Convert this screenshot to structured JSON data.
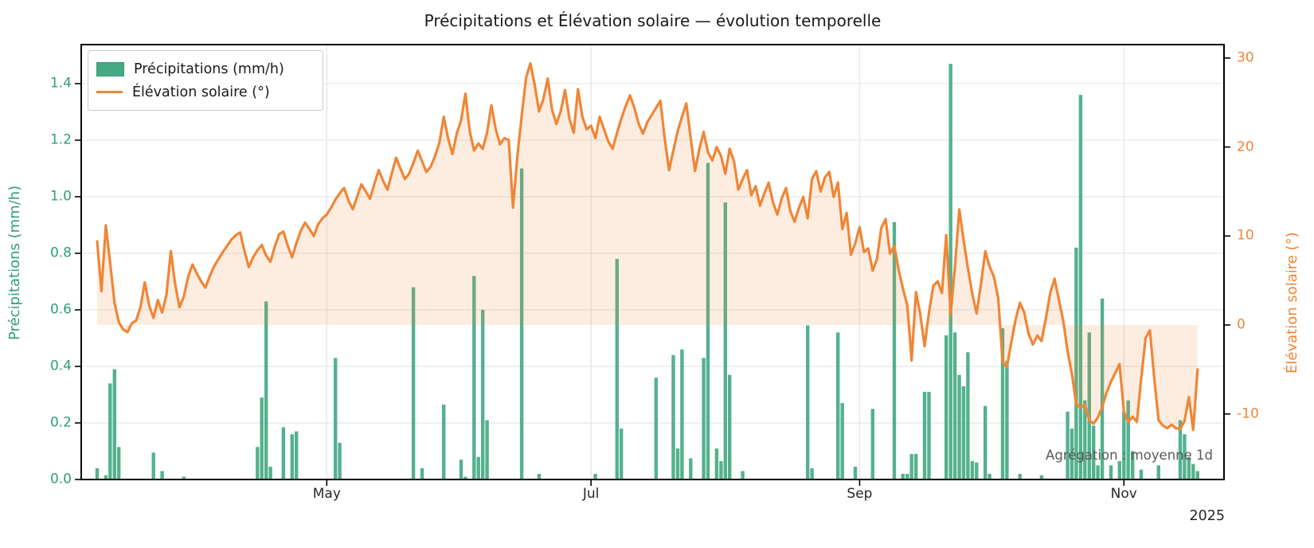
{
  "title": "Précipitations et Élévation solaire — évolution temporelle",
  "legend": {
    "items": [
      {
        "label": "Précipitations (mm/h)",
        "swatch": "bar-patch",
        "color": "#45aa84"
      },
      {
        "label": "Élévation solaire (°)",
        "swatch": "line",
        "color": "#ef8636"
      }
    ]
  },
  "annotation": "Agrégation : moyenne 1d",
  "x_axis": {
    "year_label": "2025",
    "ticks": [
      {
        "label": "May",
        "date": "2025-05-01"
      },
      {
        "label": "Jul",
        "date": "2025-07-01"
      },
      {
        "label": "Sep",
        "date": "2025-09-01"
      },
      {
        "label": "Nov",
        "date": "2025-11-01"
      }
    ]
  },
  "y_axis_left": {
    "label": "Précipitations (mm/h)",
    "color": "#2f9e77",
    "ticks": [
      "0.0",
      "0.2",
      "0.4",
      "0.6",
      "0.8",
      "1.0",
      "1.2",
      "1.4"
    ],
    "range": [
      0,
      1.54
    ]
  },
  "y_axis_right": {
    "label": "Élévation solaire (°)",
    "color": "#ef8636",
    "ticks": [
      "30",
      "20",
      "10",
      "0",
      "-10"
    ],
    "range": [
      -17.4,
      31.5
    ]
  },
  "chart_data": {
    "type": "combo",
    "grid": true,
    "legend_position": "upper-left",
    "start_date": "2025-03-09",
    "end_date": "2025-11-18",
    "aggregation": "moyenne 1d",
    "series": [
      {
        "name": "Précipitations (mm/h)",
        "type": "bar",
        "axis": "left",
        "color": "#45aa84",
        "unit": "mm/h",
        "points": {
          "2025-03-09": 0.04,
          "2025-03-11": 0.015,
          "2025-03-12": 0.34,
          "2025-03-13": 0.39,
          "2025-03-14": 0.115,
          "2025-03-22": 0.095,
          "2025-03-24": 0.03,
          "2025-03-29": 0.01,
          "2025-04-15": 0.115,
          "2025-04-16": 0.29,
          "2025-04-17": 0.63,
          "2025-04-18": 0.045,
          "2025-04-21": 0.185,
          "2025-04-23": 0.16,
          "2025-04-24": 0.17,
          "2025-05-03": 0.43,
          "2025-05-04": 0.13,
          "2025-05-21": 0.68,
          "2025-05-23": 0.04,
          "2025-05-28": 0.265,
          "2025-06-01": 0.07,
          "2025-06-02": 0.01,
          "2025-06-04": 0.72,
          "2025-06-05": 0.08,
          "2025-06-06": 0.6,
          "2025-06-07": 0.21,
          "2025-06-15": 1.1,
          "2025-06-19": 0.02,
          "2025-07-02": 0.02,
          "2025-07-07": 0.78,
          "2025-07-08": 0.18,
          "2025-07-16": 0.36,
          "2025-07-20": 0.44,
          "2025-07-21": 0.11,
          "2025-07-22": 0.46,
          "2025-07-24": 0.075,
          "2025-07-27": 0.43,
          "2025-07-28": 1.12,
          "2025-07-30": 0.11,
          "2025-07-31": 0.065,
          "2025-08-01": 0.98,
          "2025-08-02": 0.37,
          "2025-08-05": 0.03,
          "2025-08-20": 0.545,
          "2025-08-21": 0.04,
          "2025-08-27": 0.52,
          "2025-08-28": 0.27,
          "2025-08-31": 0.045,
          "2025-09-04": 0.25,
          "2025-09-09": 0.91,
          "2025-09-11": 0.02,
          "2025-09-12": 0.02,
          "2025-09-13": 0.09,
          "2025-09-14": 0.09,
          "2025-09-16": 0.31,
          "2025-09-17": 0.31,
          "2025-09-21": 0.51,
          "2025-09-22": 1.47,
          "2025-09-23": 0.52,
          "2025-09-24": 0.37,
          "2025-09-25": 0.33,
          "2025-09-26": 0.45,
          "2025-09-27": 0.065,
          "2025-09-28": 0.06,
          "2025-09-30": 0.26,
          "2025-10-01": 0.02,
          "2025-10-04": 0.535,
          "2025-10-05": 0.42,
          "2025-10-08": 0.02,
          "2025-10-13": 0.015,
          "2025-10-19": 0.24,
          "2025-10-20": 0.18,
          "2025-10-21": 0.82,
          "2025-10-22": 1.36,
          "2025-10-23": 0.28,
          "2025-10-24": 0.52,
          "2025-10-25": 0.19,
          "2025-10-26": 0.05,
          "2025-10-27": 0.64,
          "2025-10-29": 0.05,
          "2025-10-31": 0.065,
          "2025-11-01": 0.24,
          "2025-11-02": 0.28,
          "2025-11-03": 0.1,
          "2025-11-05": 0.035,
          "2025-11-09": 0.05,
          "2025-11-14": 0.21,
          "2025-11-15": 0.16,
          "2025-11-16": 0.08,
          "2025-11-17": 0.055,
          "2025-11-18": 0.03
        }
      },
      {
        "name": "Élévation solaire (°)",
        "type": "line",
        "axis": "right",
        "color": "#ef8636",
        "fill_to_zero": true,
        "fill_opacity": 0.15,
        "unit": "°",
        "values": [
          9.4,
          3.8,
          11.2,
          7.0,
          2.5,
          0.3,
          -0.5,
          -0.8,
          0.2,
          0.5,
          2.0,
          4.8,
          2.2,
          0.8,
          2.8,
          1.4,
          3.4,
          8.3,
          4.6,
          2.0,
          3.2,
          5.4,
          6.8,
          5.8,
          4.9,
          4.2,
          5.5,
          6.6,
          7.4,
          8.2,
          8.9,
          9.6,
          10.1,
          10.4,
          8.3,
          6.5,
          7.6,
          8.4,
          9.0,
          7.8,
          7.1,
          8.8,
          10.2,
          10.5,
          8.9,
          7.6,
          9.2,
          10.6,
          11.5,
          10.8,
          10.0,
          11.3,
          12.0,
          12.4,
          13.2,
          14.1,
          14.8,
          15.4,
          14.0,
          13.0,
          14.4,
          15.8,
          15.0,
          14.2,
          15.9,
          17.4,
          16.2,
          15.2,
          17.0,
          18.8,
          17.6,
          16.4,
          17.0,
          18.2,
          19.6,
          18.4,
          17.2,
          17.8,
          19.0,
          20.5,
          23.4,
          21.0,
          19.2,
          21.5,
          23.0,
          26.0,
          21.8,
          19.6,
          20.4,
          19.8,
          21.6,
          24.7,
          22.0,
          20.3,
          21.0,
          20.8,
          13.2,
          19.0,
          23.5,
          27.8,
          29.4,
          27.0,
          24.0,
          25.4,
          27.7,
          24.2,
          22.6,
          24.0,
          26.4,
          23.2,
          21.6,
          26.5,
          23.4,
          22.0,
          22.4,
          21.0,
          23.4,
          22.0,
          20.6,
          19.8,
          21.6,
          23.2,
          24.6,
          25.8,
          24.4,
          22.6,
          21.5,
          22.8,
          23.6,
          24.4,
          25.2,
          21.0,
          17.4,
          19.6,
          21.8,
          23.4,
          24.9,
          21.0,
          17.3,
          19.8,
          21.7,
          19.4,
          18.5,
          20.0,
          19.0,
          17.0,
          19.8,
          18.4,
          15.2,
          16.4,
          17.4,
          14.6,
          15.6,
          13.4,
          14.8,
          16.0,
          13.8,
          12.4,
          14.2,
          15.4,
          12.8,
          11.6,
          13.2,
          14.4,
          12.0,
          16.4,
          17.3,
          15.0,
          16.6,
          17.2,
          14.4,
          16.0,
          10.8,
          12.6,
          7.9,
          9.2,
          11.0,
          8.2,
          8.6,
          6.1,
          7.4,
          10.9,
          11.9,
          8.0,
          8.9,
          6.2,
          4.1,
          2.2,
          -4.0,
          3.7,
          1.2,
          -2.4,
          1.4,
          4.4,
          4.9,
          3.6,
          10.1,
          1.2,
          6.5,
          13.0,
          9.5,
          6.4,
          3.5,
          1.3,
          4.6,
          8.3,
          6.6,
          5.4,
          3.0,
          -4.2,
          -4.7,
          -2.0,
          0.6,
          2.5,
          1.4,
          -1.0,
          -2.2,
          -1.2,
          -1.8,
          0.8,
          3.6,
          5.2,
          2.8,
          0.5,
          -3.0,
          -5.5,
          -8.9,
          -9.3,
          -9.0,
          -10.7,
          -11.1,
          -10.4,
          -9.2,
          -7.6,
          -6.4,
          -5.4,
          -4.4,
          -9.8,
          -10.9,
          -10.3,
          -10.9,
          -6.0,
          -1.5,
          -0.6,
          -6.0,
          -10.7,
          -11.3,
          -11.6,
          -11.2,
          -11.6,
          -11.7,
          -10.8,
          -8.1,
          -11.8,
          -5.0
        ]
      }
    ]
  }
}
